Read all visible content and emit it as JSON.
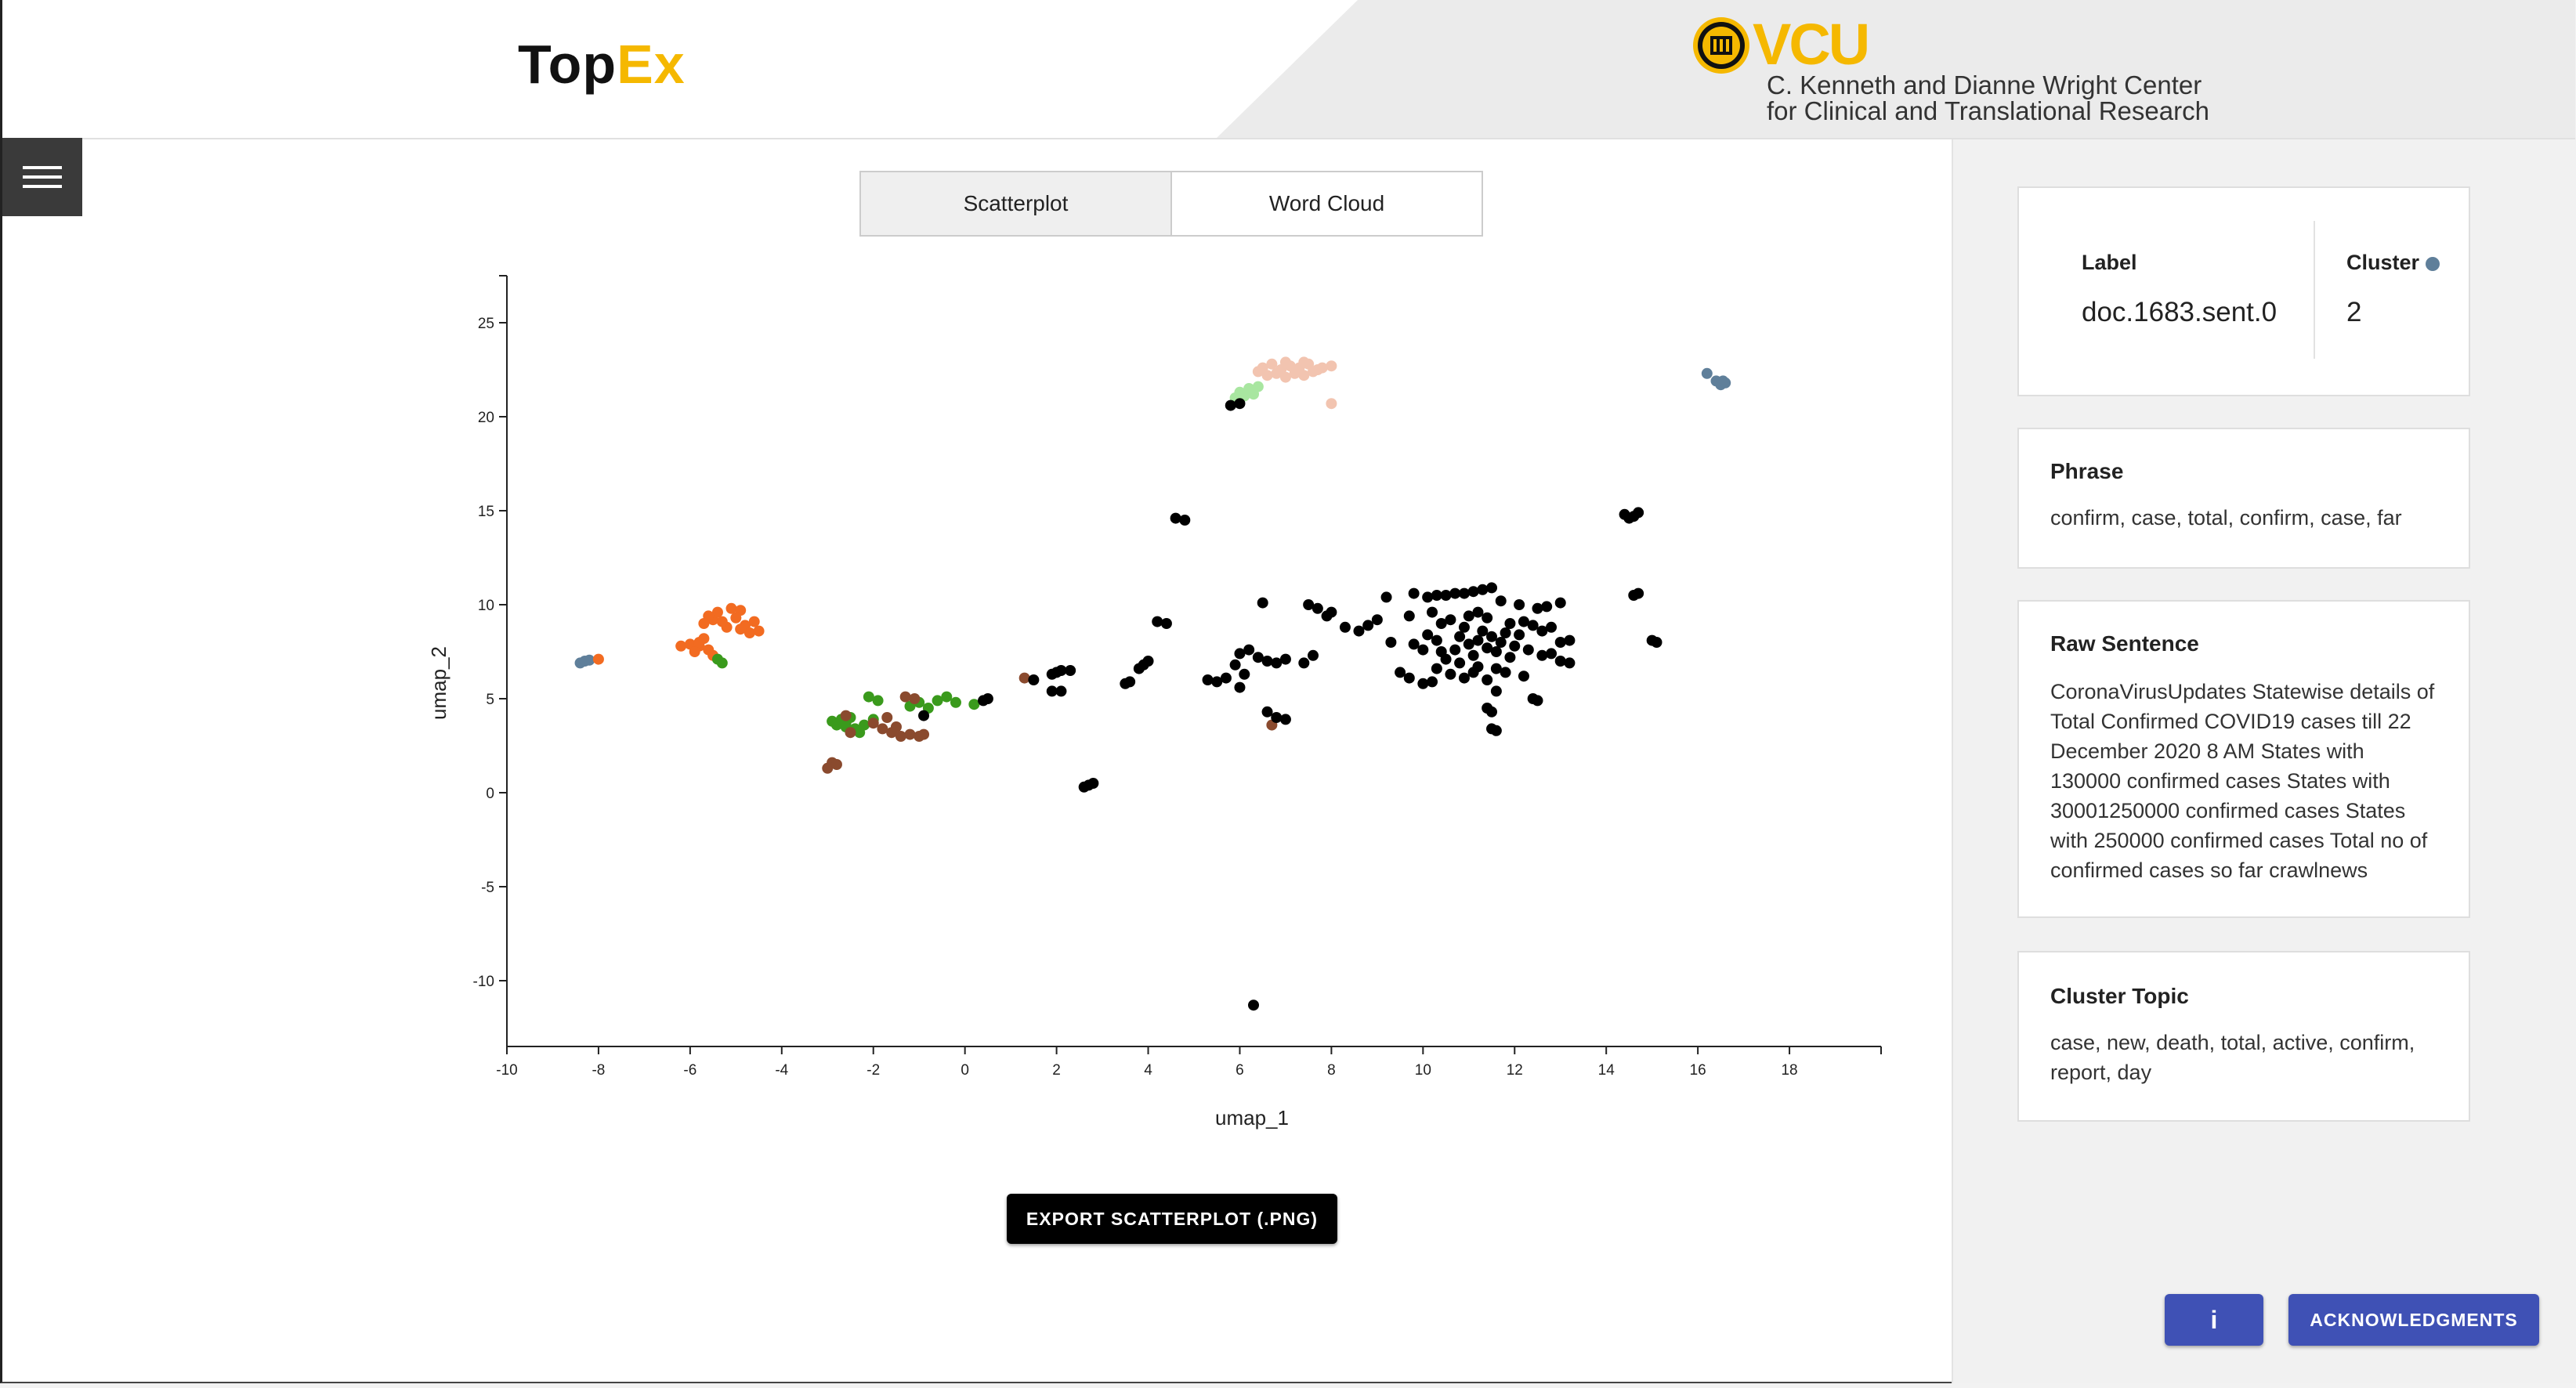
{
  "header": {
    "logo_part1": "Top",
    "logo_part2": "Ex",
    "org_logo_text": "VCU",
    "org_line1": "C. Kenneth and Dianne Wright Center",
    "org_line2": "for Clinical and Translational Research"
  },
  "tabs": [
    {
      "label": "Scatterplot",
      "active": true
    },
    {
      "label": "Word Cloud",
      "active": false
    }
  ],
  "export_label": "EXPORT SCATTERPLOT (.PNG)",
  "details": {
    "label_title": "Label",
    "label_value": "doc.1683.sent.0",
    "cluster_title": "Cluster",
    "cluster_value": "2",
    "cluster_color": "#5f7f9a",
    "phrase_title": "Phrase",
    "phrase_text": "confirm, case, total, confirm, case, far",
    "raw_title": "Raw Sentence",
    "raw_text": "CoronaVirusUpdates Statewise details of Total Confirmed COVID19 cases till 22 December 2020 8 AM States with 130000 confirmed cases States with 30001250000 confirmed cases States with 250000 confirmed cases Total no of confirmed cases so far crawlnews",
    "topic_title": "Cluster Topic",
    "topic_text": "case, new, death, total, active, confirm, report, day"
  },
  "buttons": {
    "info_label": "i",
    "ack_label": "ACKNOWLEDGMENTS"
  },
  "chart_data": {
    "type": "scatter",
    "xlabel": "umap_1",
    "ylabel": "umap_2",
    "xlim": [
      -10,
      20
    ],
    "ylim": [
      -13.5,
      27.5
    ],
    "xticks": [
      -10,
      -8,
      -6,
      -4,
      -2,
      0,
      2,
      4,
      6,
      8,
      10,
      12,
      14,
      16,
      18
    ],
    "yticks": [
      -10,
      -5,
      0,
      5,
      10,
      15,
      20,
      25
    ],
    "clusters": [
      {
        "color": "#f2c4b0",
        "points": [
          [
            6.5,
            22.6
          ],
          [
            6.7,
            22.8
          ],
          [
            6.9,
            22.5
          ],
          [
            7.1,
            22.7
          ],
          [
            7.3,
            22.6
          ],
          [
            7.5,
            22.8
          ],
          [
            7.7,
            22.5
          ],
          [
            6.6,
            22.2
          ],
          [
            6.8,
            22.3
          ],
          [
            7.0,
            22.1
          ],
          [
            7.2,
            22.3
          ],
          [
            7.4,
            22.2
          ],
          [
            7.6,
            22.4
          ],
          [
            7.8,
            22.6
          ],
          [
            8.0,
            22.7
          ],
          [
            6.4,
            22.4
          ],
          [
            7.0,
            22.9
          ],
          [
            7.4,
            22.9
          ],
          [
            8.0,
            20.7
          ]
        ]
      },
      {
        "color": "#a8e6a0",
        "points": [
          [
            5.9,
            21.0
          ],
          [
            6.0,
            21.3
          ],
          [
            6.1,
            21.1
          ],
          [
            6.2,
            21.5
          ],
          [
            6.3,
            21.2
          ],
          [
            6.4,
            21.6
          ]
        ]
      },
      {
        "color": "#5f7f9a",
        "points": [
          [
            -8.4,
            6.9
          ],
          [
            -8.3,
            7.0
          ],
          [
            -8.2,
            7.05
          ],
          [
            16.2,
            22.3
          ],
          [
            16.4,
            21.9
          ],
          [
            16.5,
            21.7
          ],
          [
            16.6,
            21.8
          ],
          [
            16.55,
            21.9
          ]
        ]
      },
      {
        "color": "#f26b21",
        "points": [
          [
            -8.0,
            7.1
          ],
          [
            -6.2,
            7.8
          ],
          [
            -6.0,
            7.9
          ],
          [
            -5.8,
            7.8
          ],
          [
            -5.6,
            7.6
          ],
          [
            -5.5,
            7.3
          ],
          [
            -5.9,
            7.5
          ],
          [
            -5.7,
            8.2
          ],
          [
            -5.5,
            9.2
          ],
          [
            -5.4,
            9.6
          ],
          [
            -5.6,
            9.4
          ],
          [
            -5.2,
            8.8
          ],
          [
            -5.1,
            9.8
          ],
          [
            -4.9,
            9.7
          ],
          [
            -4.8,
            8.9
          ],
          [
            -4.7,
            8.5
          ],
          [
            -4.5,
            8.6
          ],
          [
            -4.6,
            9.1
          ],
          [
            -4.9,
            8.7
          ],
          [
            -5.0,
            9.3
          ],
          [
            -5.3,
            9.1
          ],
          [
            -5.7,
            9.0
          ],
          [
            -5.8,
            8.0
          ]
        ]
      },
      {
        "color": "#3a9a1c",
        "points": [
          [
            -5.4,
            7.1
          ],
          [
            -5.3,
            6.9
          ],
          [
            -2.9,
            3.8
          ],
          [
            -2.8,
            3.6
          ],
          [
            -2.7,
            3.9
          ],
          [
            -2.6,
            3.5
          ],
          [
            -2.5,
            4.0
          ],
          [
            -2.4,
            3.4
          ],
          [
            -2.6,
            3.7
          ],
          [
            -2.2,
            3.6
          ],
          [
            -2.0,
            3.9
          ],
          [
            -2.3,
            3.2
          ],
          [
            -1.2,
            4.6
          ],
          [
            -1.0,
            4.8
          ],
          [
            -0.8,
            4.5
          ],
          [
            -0.6,
            4.9
          ],
          [
            -0.4,
            5.1
          ],
          [
            -0.2,
            4.8
          ],
          [
            0.2,
            4.7
          ],
          [
            -2.1,
            5.1
          ],
          [
            -1.9,
            4.9
          ]
        ]
      },
      {
        "color": "#8a4a2e",
        "points": [
          [
            -3.0,
            1.3
          ],
          [
            -2.9,
            1.6
          ],
          [
            -2.8,
            1.5
          ],
          [
            -2.0,
            3.7
          ],
          [
            -1.8,
            3.4
          ],
          [
            -1.6,
            3.2
          ],
          [
            -1.4,
            3.0
          ],
          [
            -1.2,
            3.1
          ],
          [
            -1.0,
            3.0
          ],
          [
            -0.9,
            3.1
          ],
          [
            -1.5,
            3.5
          ],
          [
            -1.7,
            4.0
          ],
          [
            -1.3,
            5.1
          ],
          [
            -1.1,
            5.0
          ],
          [
            -2.6,
            4.1
          ],
          [
            -2.5,
            3.2
          ],
          [
            1.3,
            6.1
          ],
          [
            6.7,
            3.6
          ]
        ]
      },
      {
        "color": "#000000",
        "points": [
          [
            -0.9,
            4.1
          ],
          [
            0.4,
            4.9
          ],
          [
            0.5,
            5.0
          ],
          [
            1.5,
            6.0
          ],
          [
            1.9,
            6.3
          ],
          [
            2.0,
            6.4
          ],
          [
            2.1,
            6.5
          ],
          [
            2.3,
            6.5
          ],
          [
            1.9,
            5.4
          ],
          [
            2.1,
            5.4
          ],
          [
            2.6,
            0.3
          ],
          [
            2.7,
            0.4
          ],
          [
            2.8,
            0.5
          ],
          [
            3.5,
            5.8
          ],
          [
            3.6,
            5.9
          ],
          [
            3.8,
            6.6
          ],
          [
            3.9,
            6.8
          ],
          [
            4.0,
            7.0
          ],
          [
            4.2,
            9.1
          ],
          [
            4.4,
            9.0
          ],
          [
            4.6,
            14.6
          ],
          [
            4.8,
            14.5
          ],
          [
            5.8,
            20.6
          ],
          [
            6.0,
            20.7
          ],
          [
            5.3,
            6.0
          ],
          [
            5.5,
            5.9
          ],
          [
            5.7,
            6.1
          ],
          [
            5.9,
            6.8
          ],
          [
            6.0,
            7.4
          ],
          [
            6.2,
            7.6
          ],
          [
            6.0,
            5.6
          ],
          [
            6.1,
            6.3
          ],
          [
            6.4,
            7.2
          ],
          [
            6.6,
            7.0
          ],
          [
            6.8,
            6.9
          ],
          [
            7.0,
            7.1
          ],
          [
            6.5,
            10.1
          ],
          [
            7.4,
            6.9
          ],
          [
            7.6,
            7.3
          ],
          [
            7.5,
            10.0
          ],
          [
            7.7,
            9.8
          ],
          [
            7.9,
            9.4
          ],
          [
            8.0,
            9.6
          ],
          [
            8.3,
            8.8
          ],
          [
            6.6,
            4.3
          ],
          [
            6.8,
            4.0
          ],
          [
            7.0,
            3.9
          ],
          [
            8.6,
            8.6
          ],
          [
            8.8,
            8.9
          ],
          [
            9.0,
            9.2
          ],
          [
            9.2,
            10.4
          ],
          [
            9.5,
            6.4
          ],
          [
            9.7,
            6.1
          ],
          [
            10.0,
            5.8
          ],
          [
            10.2,
            5.9
          ],
          [
            9.7,
            9.4
          ],
          [
            9.8,
            7.9
          ],
          [
            10.1,
            8.4
          ],
          [
            10.3,
            8.1
          ],
          [
            10.4,
            7.5
          ],
          [
            10.5,
            7.1
          ],
          [
            10.7,
            7.6
          ],
          [
            10.8,
            8.3
          ],
          [
            10.9,
            8.8
          ],
          [
            11.0,
            7.9
          ],
          [
            11.1,
            7.3
          ],
          [
            11.2,
            8.1
          ],
          [
            11.3,
            8.6
          ],
          [
            11.4,
            7.7
          ],
          [
            11.5,
            8.3
          ],
          [
            11.6,
            7.5
          ],
          [
            11.7,
            8.0
          ],
          [
            11.8,
            8.5
          ],
          [
            11.9,
            7.2
          ],
          [
            12.0,
            7.8
          ],
          [
            12.1,
            8.4
          ],
          [
            11.0,
            9.4
          ],
          [
            11.2,
            9.6
          ],
          [
            11.4,
            9.3
          ],
          [
            10.6,
            9.2
          ],
          [
            10.5,
            10.5
          ],
          [
            10.7,
            10.6
          ],
          [
            10.9,
            10.6
          ],
          [
            11.1,
            10.7
          ],
          [
            11.3,
            10.8
          ],
          [
            11.5,
            10.9
          ],
          [
            11.6,
            6.6
          ],
          [
            11.8,
            6.4
          ],
          [
            11.2,
            6.7
          ],
          [
            10.8,
            6.9
          ],
          [
            10.9,
            6.1
          ],
          [
            11.1,
            6.4
          ],
          [
            11.4,
            6.0
          ],
          [
            11.6,
            5.4
          ],
          [
            11.4,
            4.5
          ],
          [
            11.5,
            4.3
          ],
          [
            11.5,
            3.4
          ],
          [
            11.6,
            3.3
          ],
          [
            12.4,
            5.0
          ],
          [
            12.5,
            4.9
          ],
          [
            12.2,
            9.1
          ],
          [
            12.4,
            8.9
          ],
          [
            12.6,
            8.6
          ],
          [
            12.8,
            8.8
          ],
          [
            12.5,
            9.8
          ],
          [
            12.7,
            9.9
          ],
          [
            13.0,
            10.1
          ],
          [
            12.2,
            6.2
          ],
          [
            12.6,
            7.3
          ],
          [
            12.8,
            7.4
          ],
          [
            13.0,
            8.0
          ],
          [
            13.2,
            8.1
          ],
          [
            13.0,
            7.0
          ],
          [
            13.2,
            6.9
          ],
          [
            14.4,
            14.8
          ],
          [
            14.6,
            14.7
          ],
          [
            14.5,
            14.6
          ],
          [
            14.7,
            14.9
          ],
          [
            14.6,
            10.5
          ],
          [
            14.7,
            10.6
          ],
          [
            15.0,
            8.1
          ],
          [
            15.1,
            8.0
          ],
          [
            9.8,
            10.6
          ],
          [
            10.1,
            10.4
          ],
          [
            10.3,
            10.5
          ],
          [
            6.3,
            -11.3
          ],
          [
            10.3,
            6.6
          ],
          [
            10.6,
            6.3
          ],
          [
            12.3,
            7.6
          ],
          [
            11.9,
            9.0
          ],
          [
            10.2,
            9.6
          ],
          [
            9.3,
            8.0
          ],
          [
            10.0,
            7.6
          ],
          [
            10.4,
            9.0
          ],
          [
            11.7,
            10.2
          ],
          [
            12.1,
            10.0
          ]
        ]
      }
    ]
  }
}
